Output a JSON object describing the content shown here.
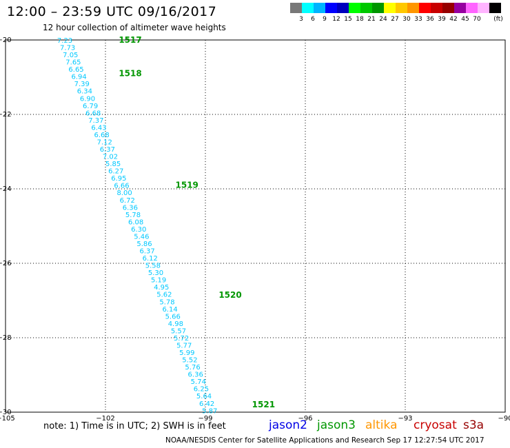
{
  "header": {
    "title": "12:00 – 23:59 UTC 09/16/2017",
    "subtitle": "12 hour collection of altimeter wave heights"
  },
  "legend": {
    "unit": "(ft)",
    "items": [
      {
        "label": "",
        "color": "#787878"
      },
      {
        "label": "3",
        "color": "#00ffff"
      },
      {
        "label": "6",
        "color": "#00b4ff"
      },
      {
        "label": "9",
        "color": "#0000ff"
      },
      {
        "label": "12",
        "color": "#0000be"
      },
      {
        "label": "15",
        "color": "#00ff00"
      },
      {
        "label": "18",
        "color": "#00c800"
      },
      {
        "label": "21",
        "color": "#009600"
      },
      {
        "label": "24",
        "color": "#ffff00"
      },
      {
        "label": "27",
        "color": "#ffc800"
      },
      {
        "label": "30",
        "color": "#ff9600"
      },
      {
        "label": "33",
        "color": "#ff0000"
      },
      {
        "label": "36",
        "color": "#c80000"
      },
      {
        "label": "39",
        "color": "#960000"
      },
      {
        "label": "42",
        "color": "#9600a0"
      },
      {
        "label": "45",
        "color": "#ff64ff"
      },
      {
        "label": "70",
        "color": "#ffb4ff"
      },
      {
        "label": "",
        "color": "#000000"
      }
    ]
  },
  "map": {
    "lon_range": [
      -105,
      -90
    ],
    "lat_range": [
      -30,
      -20
    ],
    "x_ticks": [
      {
        "value": -105,
        "label": "−105"
      },
      {
        "value": -102,
        "label": "−102"
      },
      {
        "value": -99,
        "label": "−99"
      },
      {
        "value": -96,
        "label": "−96"
      },
      {
        "value": -93,
        "label": "−93"
      },
      {
        "value": -90,
        "label": "−90"
      }
    ],
    "y_ticks": [
      {
        "value": -20,
        "label": "−20"
      },
      {
        "value": -22,
        "label": "−22"
      },
      {
        "value": -24,
        "label": "−24"
      },
      {
        "value": -26,
        "label": "−26"
      },
      {
        "value": -28,
        "label": "−28"
      },
      {
        "value": -30,
        "label": "−30"
      }
    ],
    "wave_color": "#00c8ff",
    "time_color": "#009600",
    "wave_heights": [
      "7.23",
      "7.73",
      "7.05",
      "7.65",
      "6.65",
      "6.94",
      "7.39",
      "6.34",
      "6.90",
      "6.79",
      "6.68",
      "7.37",
      "6.43",
      "6.68",
      "7.12",
      "6.37",
      "7.02",
      "5.85",
      "6.27",
      "6.95",
      "6.66",
      "8.00",
      "6.72",
      "6.36",
      "5.78",
      "6.08",
      "6.30",
      "5.46",
      "5.86",
      "6.37",
      "6.12",
      "5.58",
      "5.30",
      "5.19",
      "4.95",
      "5.62",
      "5.78",
      "6.14",
      "5.66",
      "4.98",
      "5.57",
      "5.72",
      "5.77",
      "5.99",
      "5.52",
      "5.76",
      "6.36",
      "5.74",
      "6.25",
      "5.64",
      "6.42",
      "5.87"
    ],
    "time_labels": [
      {
        "label": "1517",
        "lon": -101.6,
        "lat": -20.0
      },
      {
        "label": "1518",
        "lon": -101.6,
        "lat": -20.9
      },
      {
        "label": "1519",
        "lon": -99.9,
        "lat": -23.9
      },
      {
        "label": "1520",
        "lon": -98.6,
        "lat": -26.85
      },
      {
        "label": "1521",
        "lon": -97.6,
        "lat": -29.8
      }
    ]
  },
  "footer": {
    "note": "note: 1) Time is in UTC; 2) SWH is in feet",
    "satellites": [
      {
        "name": "jason2",
        "color": "#0000e6"
      },
      {
        "name": "jason3",
        "color": "#009600"
      },
      {
        "name": "altika",
        "color": "#ff9600"
      },
      {
        "name": "cryosat",
        "color": "#c80000"
      },
      {
        "name": "s3a",
        "color": "#960000"
      }
    ],
    "credit": "NOAA/NESDIS Center for Satellite Applications and Research    Sep 17 12:27:54 UTC 2017"
  }
}
